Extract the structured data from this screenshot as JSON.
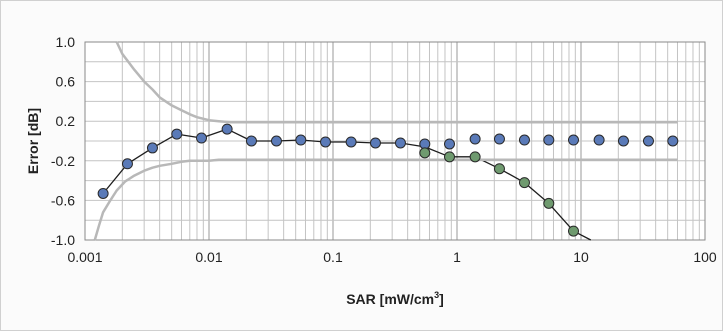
{
  "chart_data": {
    "type": "scatter",
    "title": "",
    "xlabel": "SAR [mW/cm",
    "xlabel_superscript": "3",
    "xlabel_suffix": "]",
    "ylabel": "Error [dB]",
    "x_scale": "log",
    "xlim": [
      0.001,
      100
    ],
    "ylim": [
      -1.0,
      1.0
    ],
    "x_tick_labels": [
      "0.001",
      "0.01",
      "0.1",
      "1",
      "10",
      "100"
    ],
    "y_tick_labels": [
      "1.0",
      "0.6",
      "0.2",
      "-0.2",
      "-0.6",
      "-1.0"
    ],
    "grid": true,
    "legend": "none",
    "series": [
      {
        "color": "#5a7ab8",
        "marker": "circle",
        "x": [
          0.0014,
          0.0022,
          0.0035,
          0.0055,
          0.0087,
          0.014,
          0.022,
          0.035,
          0.055,
          0.087,
          0.14,
          0.22,
          0.35,
          0.55,
          0.87,
          1.4,
          2.2,
          3.5,
          5.5,
          8.7,
          14,
          22,
          35,
          55
        ],
        "y": [
          -0.53,
          -0.23,
          -0.07,
          0.07,
          0.03,
          0.12,
          0.0,
          0.0,
          0.01,
          -0.01,
          -0.01,
          -0.02,
          -0.02,
          -0.03,
          -0.03,
          0.02,
          0.02,
          0.01,
          0.01,
          0.01,
          0.01,
          0.0,
          0.0,
          0.0
        ]
      },
      {
        "color": "#6f9a6f",
        "marker": "circle",
        "x": [
          0.55,
          0.87,
          1.4,
          2.2,
          3.5,
          5.5,
          8.7
        ],
        "y": [
          -0.12,
          -0.16,
          -0.16,
          -0.28,
          -0.42,
          -0.63,
          -0.91
        ]
      },
      {
        "color": "#1e1e1e",
        "marker": "none",
        "x": [
          0.0014,
          0.0022,
          0.0035,
          0.0055,
          0.0087,
          0.014,
          0.022,
          0.035,
          0.055,
          0.087,
          0.14,
          0.22,
          0.35,
          0.55,
          0.87,
          1.4,
          2.2,
          3.5,
          5.5,
          8.7,
          12
        ],
        "y": [
          -0.53,
          -0.23,
          -0.07,
          0.07,
          0.03,
          0.12,
          0.0,
          0.0,
          0.01,
          -0.01,
          -0.01,
          -0.02,
          -0.02,
          -0.06,
          -0.16,
          -0.16,
          -0.28,
          -0.42,
          -0.63,
          -0.91,
          -1.0
        ]
      },
      {
        "color": "#b8b8b8",
        "marker": "none",
        "x": [
          0.0018,
          0.002,
          0.0025,
          0.003,
          0.0035,
          0.004,
          0.005,
          0.006,
          0.007,
          0.008,
          0.01,
          0.012,
          0.015,
          0.02,
          0.03,
          0.06,
          0.1,
          0.3,
          1,
          3,
          10,
          30,
          60
        ],
        "y": [
          1.0,
          0.88,
          0.72,
          0.6,
          0.52,
          0.44,
          0.36,
          0.31,
          0.27,
          0.24,
          0.21,
          0.2,
          0.19,
          0.19,
          0.19,
          0.19,
          0.19,
          0.19,
          0.19,
          0.19,
          0.19,
          0.19,
          0.19
        ]
      },
      {
        "color": "#b8b8b8",
        "marker": "none",
        "x": [
          0.0012,
          0.0013,
          0.0014,
          0.0016,
          0.0018,
          0.0021,
          0.0025,
          0.003,
          0.0035,
          0.004,
          0.005,
          0.006,
          0.007,
          0.008,
          0.01,
          0.012,
          0.015,
          0.02,
          0.03,
          0.06,
          0.1,
          0.3,
          1,
          3,
          10,
          30,
          60
        ],
        "y": [
          -1.0,
          -0.85,
          -0.72,
          -0.6,
          -0.5,
          -0.41,
          -0.35,
          -0.3,
          -0.27,
          -0.25,
          -0.23,
          -0.21,
          -0.2,
          -0.2,
          -0.2,
          -0.19,
          -0.19,
          -0.19,
          -0.19,
          -0.19,
          -0.19,
          -0.19,
          -0.19,
          -0.19,
          -0.19,
          -0.19,
          -0.19
        ]
      }
    ]
  }
}
